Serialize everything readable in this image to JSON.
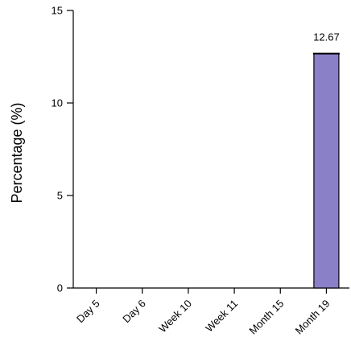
{
  "chart_data": {
    "type": "bar",
    "title": "",
    "xlabel": "",
    "ylabel": "Percentage (%)",
    "categories": [
      "Day 5",
      "Day 6",
      "Week 10",
      "Week 11",
      "Month 15",
      "Month 19"
    ],
    "values": [
      0,
      0,
      0,
      0,
      0,
      12.67
    ],
    "data_labels": [
      "",
      "",
      "",
      "",
      "",
      "12.67"
    ],
    "ylim": [
      0,
      15
    ],
    "yticks": [
      0,
      5,
      10,
      15
    ],
    "grid": false,
    "bar_color": "#8a80c8",
    "bar_edge_color": "#000000"
  }
}
